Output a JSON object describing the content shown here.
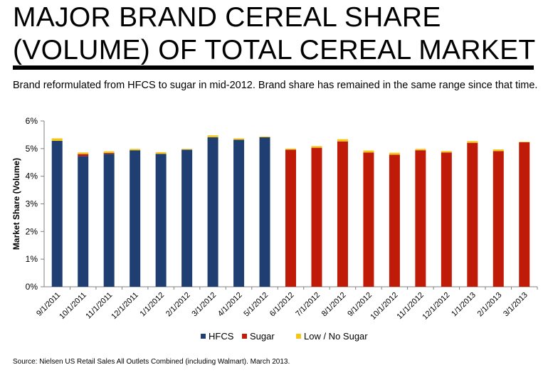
{
  "header": {
    "title_line1": "MAJOR BRAND CEREAL SHARE",
    "title_line2": "(VOLUME) OF TOTAL CEREAL MARKET",
    "subtitle": "Brand reformulated from HFCS to sugar in mid-2012. Brand share has remained in the same range since that time."
  },
  "footer": {
    "source": "Source: Nielsen US Retail Sales All Outlets Combined (including Walmart). March 2013."
  },
  "chart_data": {
    "type": "bar",
    "stacked": true,
    "title": "",
    "xlabel": "",
    "ylabel": "Market Share (Volume)",
    "ylim": [
      0,
      6
    ],
    "yticks": [
      "0%",
      "1%",
      "2%",
      "3%",
      "4%",
      "5%",
      "6%"
    ],
    "grid": false,
    "legend_position": "bottom",
    "categories": [
      "9/1/2011",
      "10/1/2011",
      "11/1/2011",
      "12/1/2011",
      "1/1/2012",
      "2/1/2012",
      "3/1/2012",
      "4/1/2012",
      "5/1/2012",
      "6/1/2012",
      "7/1/2012",
      "8/1/2012",
      "9/1/2012",
      "10/1/2012",
      "11/1/2012",
      "12/1/2012",
      "1/1/2013",
      "2/1/2013",
      "3/1/2013"
    ],
    "series": [
      {
        "name": "HFCS",
        "color": "#1f3f73",
        "values": [
          5.28,
          4.73,
          4.81,
          4.94,
          4.81,
          4.96,
          5.41,
          5.32,
          5.41,
          0,
          0,
          0,
          0,
          0,
          0,
          0,
          0,
          0,
          0
        ]
      },
      {
        "name": "Sugar",
        "color": "#c01a08",
        "values": [
          0,
          0.07,
          0.03,
          0,
          0,
          0,
          0,
          0,
          0,
          4.96,
          5.03,
          5.26,
          4.86,
          4.78,
          4.94,
          4.86,
          5.21,
          4.91,
          5.23
        ]
      },
      {
        "name": "Low / No Sugar",
        "color": "#f5c518",
        "values": [
          0.09,
          0.06,
          0.06,
          0.05,
          0.06,
          0.03,
          0.07,
          0.05,
          0.03,
          0.04,
          0.06,
          0.08,
          0.07,
          0.07,
          0.05,
          0.05,
          0.06,
          0.06,
          0.02
        ]
      }
    ]
  }
}
